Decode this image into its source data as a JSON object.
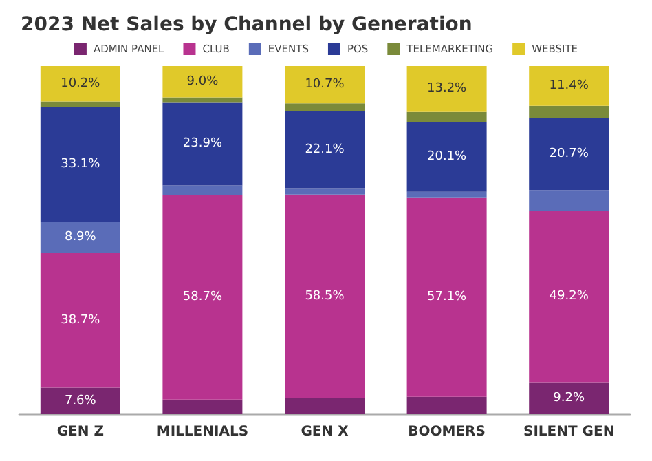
{
  "chart_data": {
    "type": "bar",
    "title": "2023 Net Sales by Channel by Generation",
    "stacked": true,
    "categories": [
      "GEN Z",
      "MILLENIALS",
      "GEN X",
      "BOOMERS",
      "SILENT GEN"
    ],
    "ylim": [
      0,
      100
    ],
    "tick_labels": "x",
    "legend": "top",
    "series": [
      {
        "name": "ADMIN PANEL",
        "color": "#7a2670",
        "values": [
          7.6,
          4.2,
          4.6,
          5.0,
          9.2
        ],
        "value_labels": [
          "7.6%",
          null,
          null,
          null,
          "9.2%"
        ]
      },
      {
        "name": "CLUB",
        "color": "#b8338f",
        "values": [
          38.7,
          58.7,
          58.5,
          57.1,
          49.2
        ],
        "value_labels": [
          "38.7%",
          "58.7%",
          "58.5%",
          "57.1%",
          "49.2%"
        ]
      },
      {
        "name": "EVENTS",
        "color": "#5a6cb8",
        "values": [
          8.9,
          2.8,
          1.8,
          1.8,
          6.0
        ],
        "value_labels": [
          "8.9%",
          null,
          null,
          null,
          null
        ]
      },
      {
        "name": "POS",
        "color": "#2b3b96",
        "values": [
          33.1,
          23.9,
          22.1,
          20.1,
          20.7
        ],
        "value_labels": [
          "33.1%",
          "23.9%",
          "22.1%",
          "20.1%",
          "20.7%"
        ]
      },
      {
        "name": "TELEMARKETING",
        "color": "#7a8a3a",
        "values": [
          1.5,
          1.4,
          2.3,
          2.8,
          3.5
        ],
        "value_labels": [
          null,
          null,
          null,
          null,
          null
        ]
      },
      {
        "name": "WEBSITE",
        "color": "#e0c92a",
        "values": [
          10.2,
          9.0,
          10.7,
          13.2,
          11.4
        ],
        "value_labels": [
          "10.2%",
          "9.0%",
          "10.7%",
          "13.2%",
          "11.4%"
        ]
      }
    ]
  }
}
